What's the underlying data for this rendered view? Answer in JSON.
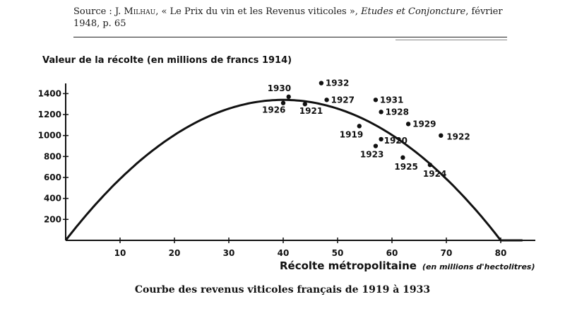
{
  "source": {
    "prefix": "Source : J. ",
    "author": "Milhau",
    "title": ", « Le Prix du vin et les Revenus viticoles », ",
    "journal": "Etudes et Conjoncture",
    "suffix": ", février 1948, p. 65"
  },
  "caption": "Courbe des revenus viticoles français de 1919 à 1933",
  "chart_data": {
    "type": "scatter",
    "title": "Courbe des revenus viticoles français de 1919 à 1933",
    "ylabel": "Valeur de la récolte (en millions de francs 1914)",
    "xlabel_main": "Récolte métropolitaine",
    "xlabel_unit": "(en millions d'hectolitres)",
    "xlim": [
      0,
      85
    ],
    "ylim": [
      0,
      1500
    ],
    "xticks": [
      10,
      20,
      30,
      40,
      50,
      60,
      70,
      80
    ],
    "yticks": [
      200,
      400,
      600,
      800,
      1000,
      1200,
      1400
    ],
    "grid": false,
    "points": [
      {
        "label": "1919",
        "x": 54,
        "y": 1090
      },
      {
        "label": "1920",
        "x": 58,
        "y": 965
      },
      {
        "label": "1921",
        "x": 44,
        "y": 1300
      },
      {
        "label": "1922",
        "x": 69,
        "y": 1000
      },
      {
        "label": "1923",
        "x": 57,
        "y": 900
      },
      {
        "label": "1924",
        "x": 67,
        "y": 720
      },
      {
        "label": "1925",
        "x": 62,
        "y": 790
      },
      {
        "label": "1926",
        "x": 40,
        "y": 1310
      },
      {
        "label": "1927",
        "x": 48,
        "y": 1340
      },
      {
        "label": "1928",
        "x": 58,
        "y": 1225
      },
      {
        "label": "1929",
        "x": 63,
        "y": 1110
      },
      {
        "label": "1930",
        "x": 41,
        "y": 1370
      },
      {
        "label": "1931",
        "x": 57,
        "y": 1340
      },
      {
        "label": "1932",
        "x": 47,
        "y": 1500
      }
    ],
    "curve": {
      "type": "parabola",
      "x_start": 0,
      "x_end": 84,
      "peak_x": 40,
      "peak_y": 1340
    }
  }
}
